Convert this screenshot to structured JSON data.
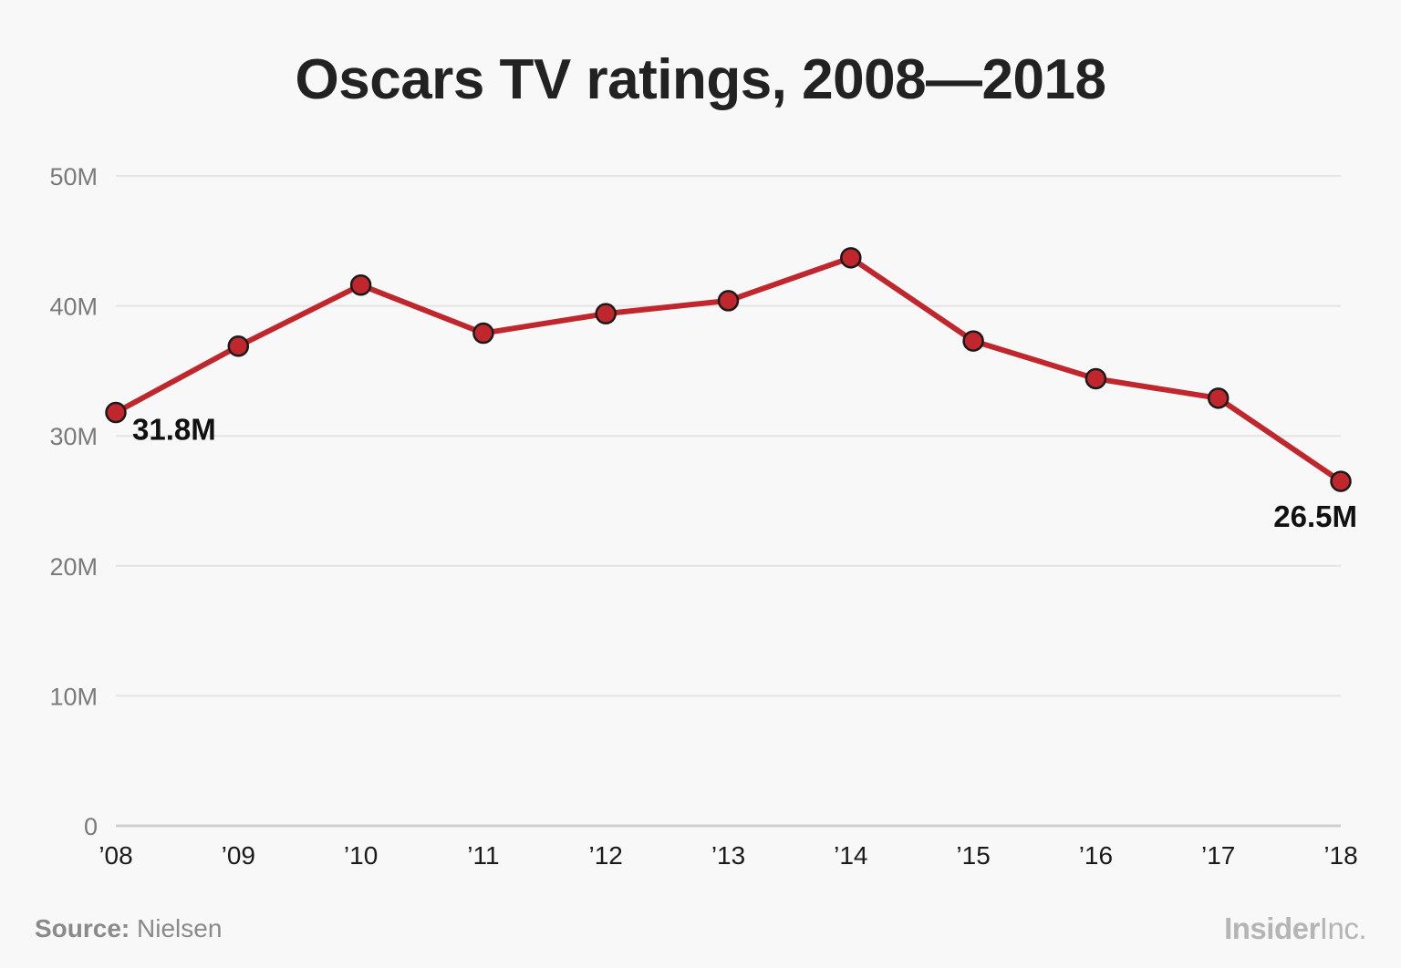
{
  "chart_data": {
    "type": "line",
    "title": "Oscars TV ratings, 2008—2018",
    "categories": [
      "’08",
      "’09",
      "’10",
      "’11",
      "’12",
      "’13",
      "’14",
      "’15",
      "’16",
      "’17",
      "’18"
    ],
    "series": [
      {
        "values": [
          31.8,
          36.9,
          41.6,
          37.9,
          39.4,
          40.4,
          43.7,
          37.3,
          34.4,
          32.9,
          26.5
        ],
        "color": "#c0272d"
      }
    ],
    "ylim": [
      0,
      50
    ],
    "yticks": [
      {
        "value": 0,
        "label": "0"
      },
      {
        "value": 10,
        "label": "10M"
      },
      {
        "value": 20,
        "label": "20M"
      },
      {
        "value": 30,
        "label": "30M"
      },
      {
        "value": 40,
        "label": "40M"
      },
      {
        "value": 50,
        "label": "50M"
      }
    ],
    "data_labels": [
      {
        "index": 0,
        "text": "31.8M"
      },
      {
        "index": 10,
        "text": "26.5M"
      }
    ],
    "grid": true,
    "xlabel": "",
    "ylabel": ""
  },
  "footer": {
    "source_label": "Source:",
    "source_value": "Nielsen",
    "brand_strong": "Insider",
    "brand_light": "Inc."
  }
}
